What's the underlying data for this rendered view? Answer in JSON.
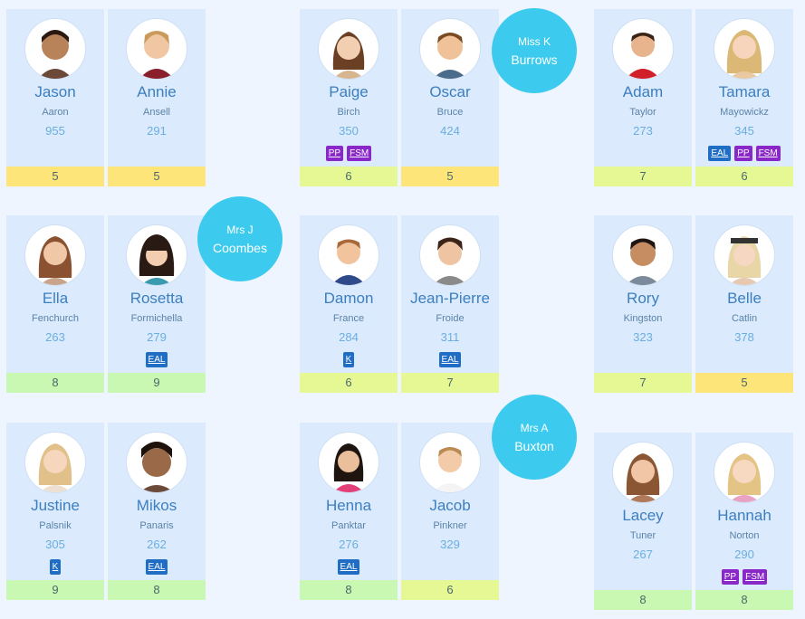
{
  "teachers": [
    {
      "title": "Miss K",
      "name": "Burrows"
    },
    {
      "title": "Mrs J",
      "name": "Coombes"
    },
    {
      "title": "Mrs A",
      "name": "Buxton"
    }
  ],
  "students": [
    {
      "first": "Jason",
      "last": "Aaron",
      "score": "955",
      "level": "5",
      "level_color": "#fde57a",
      "tags": []
    },
    {
      "first": "Annie",
      "last": "Ansell",
      "score": "291",
      "level": "5",
      "level_color": "#fde57a",
      "tags": []
    },
    {
      "first": "Paige",
      "last": "Birch",
      "score": "350",
      "level": "6",
      "level_color": "#e6f894",
      "tags": [
        "PP",
        "FSM"
      ]
    },
    {
      "first": "Oscar",
      "last": "Bruce",
      "score": "424",
      "level": "5",
      "level_color": "#fde57a",
      "tags": []
    },
    {
      "first": "Adam",
      "last": "Taylor",
      "score": "273",
      "level": "7",
      "level_color": "#e6f894",
      "tags": []
    },
    {
      "first": "Tamara",
      "last": "Mayowickz",
      "score": "345",
      "level": "6",
      "level_color": "#e6f894",
      "tags": [
        "EAL",
        "PP",
        "FSM"
      ]
    },
    {
      "first": "Ella",
      "last": "Fenchurch",
      "score": "263",
      "level": "8",
      "level_color": "#c9f8b2",
      "tags": []
    },
    {
      "first": "Rosetta",
      "last": "Formichella",
      "score": "279",
      "level": "9",
      "level_color": "#c9f8b2",
      "tags": [
        "EAL"
      ]
    },
    {
      "first": "Damon",
      "last": "France",
      "score": "284",
      "level": "6",
      "level_color": "#e6f894",
      "tags": [
        "K"
      ]
    },
    {
      "first": "Jean-Pierre",
      "last": "Froide",
      "score": "311",
      "level": "7",
      "level_color": "#e6f894",
      "tags": [
        "EAL"
      ]
    },
    {
      "first": "Rory",
      "last": "Kingston",
      "score": "323",
      "level": "7",
      "level_color": "#e6f894",
      "tags": []
    },
    {
      "first": "Belle",
      "last": "Catlin",
      "score": "378",
      "level": "5",
      "level_color": "#fde57a",
      "tags": []
    },
    {
      "first": "Justine",
      "last": "Palsnik",
      "score": "305",
      "level": "9",
      "level_color": "#c9f8b2",
      "tags": [
        "K"
      ]
    },
    {
      "first": "Mikos",
      "last": "Panaris",
      "score": "262",
      "level": "8",
      "level_color": "#c9f8b2",
      "tags": [
        "EAL"
      ]
    },
    {
      "first": "Henna",
      "last": "Panktar",
      "score": "276",
      "level": "8",
      "level_color": "#c9f8b2",
      "tags": [
        "EAL"
      ]
    },
    {
      "first": "Jacob",
      "last": "Pinkner",
      "score": "329",
      "level": "6",
      "level_color": "#e6f894",
      "tags": []
    },
    {
      "first": "Lacey",
      "last": "Tuner",
      "score": "267",
      "level": "8",
      "level_color": "#c9f8b2",
      "tags": []
    },
    {
      "first": "Hannah",
      "last": "Norton",
      "score": "290",
      "level": "8",
      "level_color": "#c9f8b2",
      "tags": [
        "PP",
        "FSM"
      ]
    }
  ]
}
